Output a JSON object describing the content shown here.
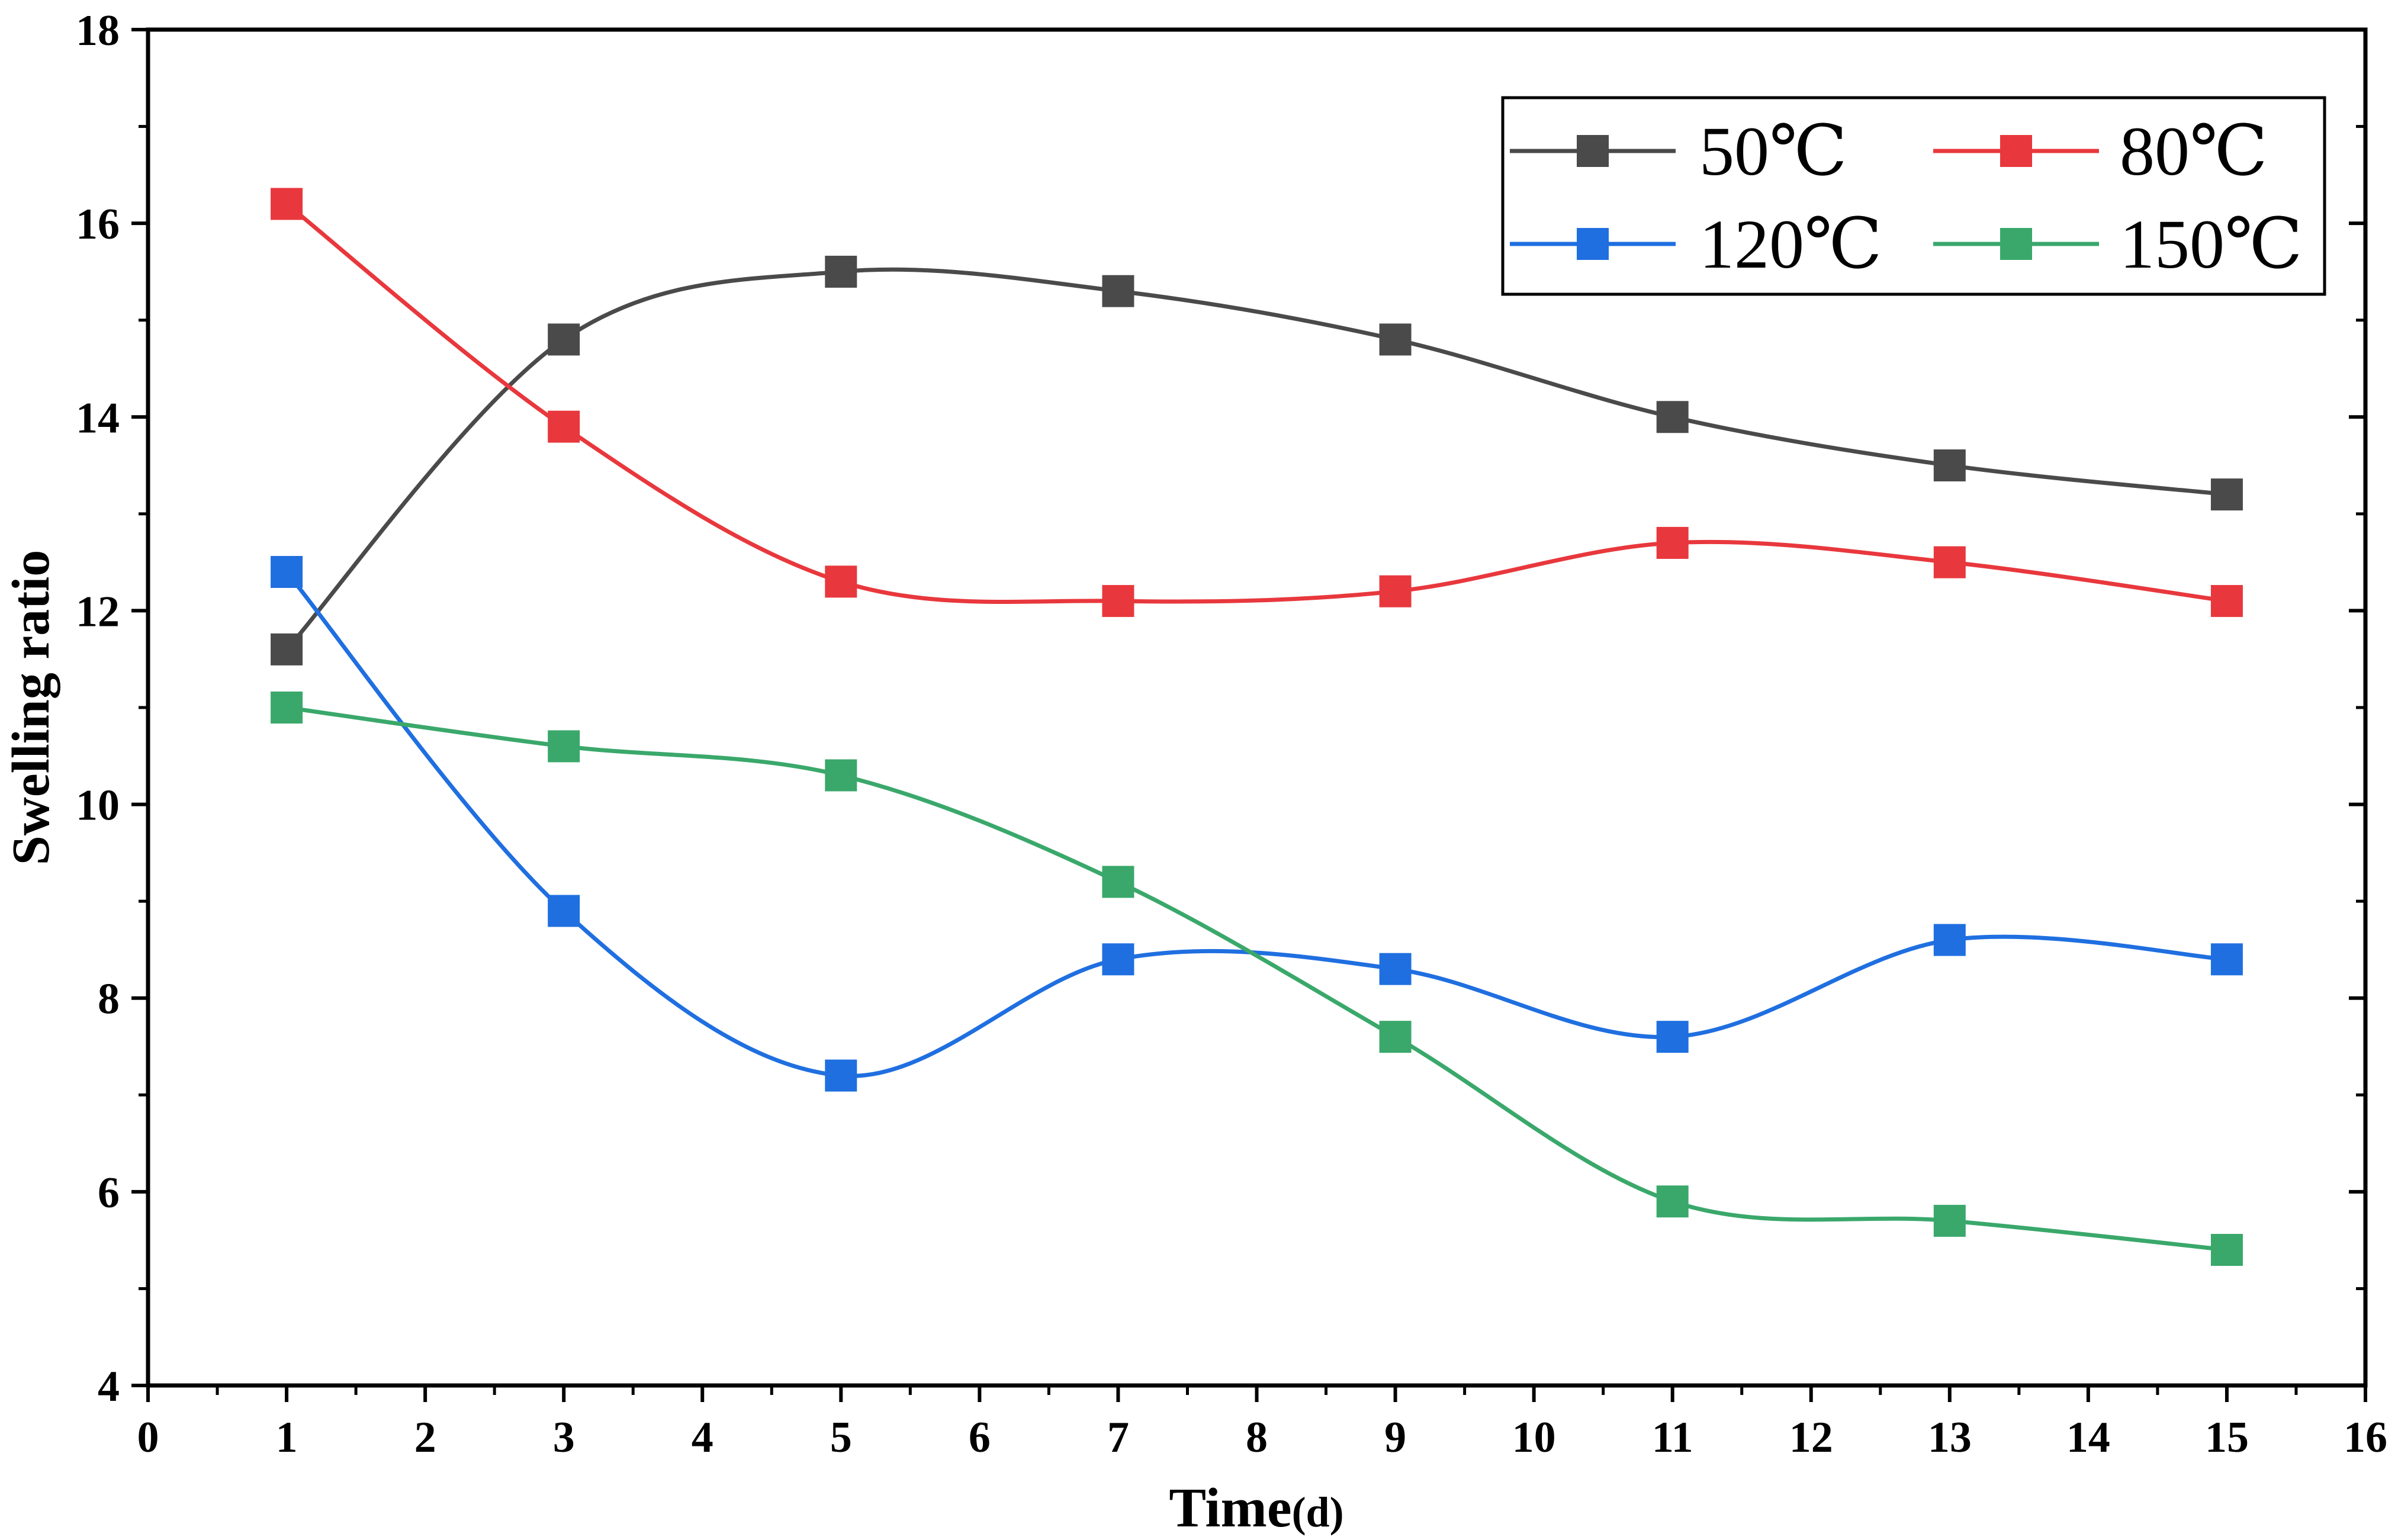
{
  "chart_data": {
    "type": "line",
    "title": "",
    "xlabel": "Time",
    "xlabel_unit": "(d)",
    "ylabel": "Swelling ratio",
    "xlim": [
      0,
      16
    ],
    "ylim": [
      4,
      18
    ],
    "x_ticks": [
      "0",
      "1",
      "2",
      "3",
      "4",
      "5",
      "6",
      "7",
      "8",
      "9",
      "10",
      "11",
      "12",
      "13",
      "14",
      "15",
      "16"
    ],
    "y_ticks": [
      "4",
      "6",
      "8",
      "10",
      "12",
      "14",
      "16",
      "18"
    ],
    "grid": false,
    "legend_position": "top-right",
    "x": [
      1,
      3,
      5,
      7,
      9,
      11,
      13,
      15
    ],
    "series": [
      {
        "name": "50℃",
        "color": "#4a4a4a",
        "values": [
          11.6,
          14.8,
          15.5,
          15.3,
          14.8,
          14.0,
          13.5,
          13.2
        ]
      },
      {
        "name": "80℃",
        "color": "#e8383d",
        "values": [
          16.2,
          13.9,
          12.3,
          12.1,
          12.2,
          12.7,
          12.5,
          12.1
        ]
      },
      {
        "name": "120℃",
        "color": "#1f6fe0",
        "values": [
          12.4,
          8.9,
          7.2,
          8.4,
          8.3,
          7.6,
          8.6,
          8.4
        ]
      },
      {
        "name": "150℃",
        "color": "#3aa86b",
        "values": [
          11.0,
          10.6,
          10.3,
          9.2,
          7.6,
          5.9,
          5.7,
          5.4
        ]
      }
    ]
  }
}
